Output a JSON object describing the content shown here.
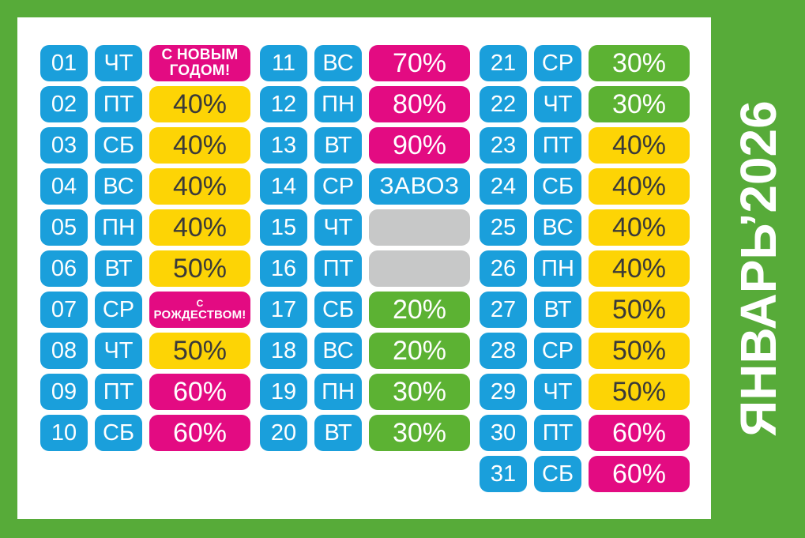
{
  "poster": {
    "month_title": "ЯНВАРЬ’2026"
  },
  "colors": {
    "frame_green": "#57ab39",
    "panel_white": "#ffffff",
    "day_blue": "#1a9fdb",
    "discount_yellow": "#fdd405",
    "discount_magenta": "#e30b82",
    "discount_green": "#5cb233",
    "no_discount_gray": "#c7c8c8",
    "text_dark": "#3a3a39",
    "text_white": "#ffffff"
  },
  "calendar": {
    "columns": [
      {
        "days": [
          {
            "num": "01",
            "dow": "ЧТ",
            "kind": "holiday_ny",
            "lines": [
              "С НОВЫМ",
              "ГОДОМ!"
            ]
          },
          {
            "num": "02",
            "dow": "ПТ",
            "kind": "yellow",
            "value": "40%"
          },
          {
            "num": "03",
            "dow": "СБ",
            "kind": "yellow",
            "value": "40%"
          },
          {
            "num": "04",
            "dow": "ВС",
            "kind": "yellow",
            "value": "40%"
          },
          {
            "num": "05",
            "dow": "ПН",
            "kind": "yellow",
            "value": "40%"
          },
          {
            "num": "06",
            "dow": "ВТ",
            "kind": "yellow",
            "value": "50%"
          },
          {
            "num": "07",
            "dow": "СР",
            "kind": "holiday_xmas",
            "lines": [
              "С",
              "РОЖДЕСТВОМ!"
            ]
          },
          {
            "num": "08",
            "dow": "ЧТ",
            "kind": "yellow",
            "value": "50%"
          },
          {
            "num": "09",
            "dow": "ПТ",
            "kind": "magenta",
            "value": "60%"
          },
          {
            "num": "10",
            "dow": "СБ",
            "kind": "magenta",
            "value": "60%"
          }
        ]
      },
      {
        "days": [
          {
            "num": "11",
            "dow": "ВС",
            "kind": "magenta",
            "value": "70%"
          },
          {
            "num": "12",
            "dow": "ПН",
            "kind": "magenta",
            "value": "80%"
          },
          {
            "num": "13",
            "dow": "ВТ",
            "kind": "magenta",
            "value": "90%"
          },
          {
            "num": "14",
            "dow": "СР",
            "kind": "blue",
            "value": "ЗАВОЗ"
          },
          {
            "num": "15",
            "dow": "ЧТ",
            "kind": "gray",
            "value": ""
          },
          {
            "num": "16",
            "dow": "ПТ",
            "kind": "gray",
            "value": ""
          },
          {
            "num": "17",
            "dow": "СБ",
            "kind": "green",
            "value": "20%"
          },
          {
            "num": "18",
            "dow": "ВС",
            "kind": "green",
            "value": "20%"
          },
          {
            "num": "19",
            "dow": "ПН",
            "kind": "green",
            "value": "30%"
          },
          {
            "num": "20",
            "dow": "ВТ",
            "kind": "green",
            "value": "30%"
          }
        ]
      },
      {
        "days": [
          {
            "num": "21",
            "dow": "СР",
            "kind": "green",
            "value": "30%"
          },
          {
            "num": "22",
            "dow": "ЧТ",
            "kind": "green",
            "value": "30%"
          },
          {
            "num": "23",
            "dow": "ПТ",
            "kind": "yellow",
            "value": "40%"
          },
          {
            "num": "24",
            "dow": "СБ",
            "kind": "yellow",
            "value": "40%"
          },
          {
            "num": "25",
            "dow": "ВС",
            "kind": "yellow",
            "value": "40%"
          },
          {
            "num": "26",
            "dow": "ПН",
            "kind": "yellow",
            "value": "40%"
          },
          {
            "num": "27",
            "dow": "ВТ",
            "kind": "yellow",
            "value": "50%"
          },
          {
            "num": "28",
            "dow": "СР",
            "kind": "yellow",
            "value": "50%"
          },
          {
            "num": "29",
            "dow": "ЧТ",
            "kind": "yellow",
            "value": "50%"
          },
          {
            "num": "30",
            "dow": "ПТ",
            "kind": "magenta",
            "value": "60%"
          },
          {
            "num": "31",
            "dow": "СБ",
            "kind": "magenta",
            "value": "60%"
          }
        ]
      }
    ]
  }
}
